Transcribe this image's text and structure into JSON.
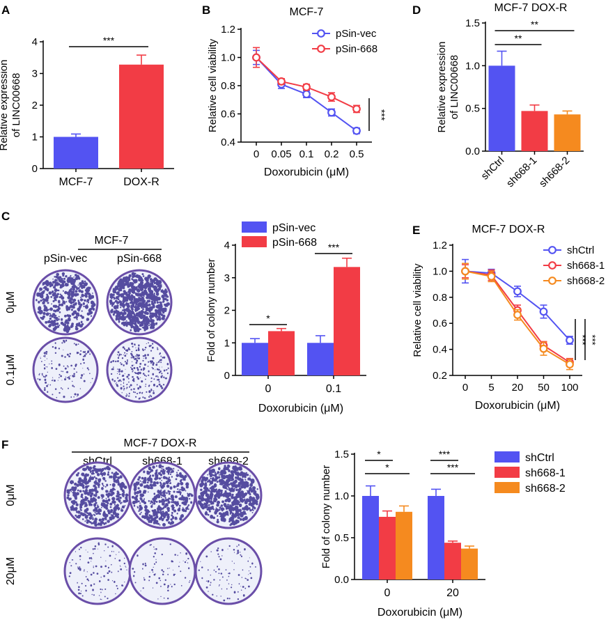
{
  "colors": {
    "blue": "#5353f2",
    "red": "#f23c45",
    "orange": "#f58a1f",
    "plate_edge": "#6a4ea8",
    "plate_bg": "#eef0fa",
    "plate_light": "#dfe4f2",
    "colony": "#3a2f8f"
  },
  "panels": {
    "A": {
      "letter": "A",
      "chart_data": {
        "type": "bar",
        "title": "",
        "categories": [
          "MCF-7",
          "DOX-R"
        ],
        "values": [
          1.0,
          3.28
        ],
        "errors": [
          0.09,
          0.3
        ],
        "bar_colors": [
          "#5353f2",
          "#f23c45"
        ],
        "ylabel_lines": [
          "Relative expression",
          "of LINC00668"
        ],
        "xlabel": "",
        "ylim": [
          0,
          4
        ],
        "yticks": [
          "0",
          "1",
          "2",
          "3",
          "4"
        ],
        "significance": [
          {
            "from": 0,
            "to": 1,
            "label": "***"
          }
        ]
      }
    },
    "B": {
      "letter": "B",
      "chart_data": {
        "type": "line",
        "title": "MCF-7",
        "categories": [
          "0",
          "0.05",
          "0.1",
          "0.2",
          "0.5"
        ],
        "series": [
          {
            "name": "pSin-vec",
            "color": "#5353f2",
            "values": [
              1.0,
              0.81,
              0.74,
              0.61,
              0.48
            ],
            "errors": [
              0.05,
              0.03,
              0.025,
              0.025,
              0.02
            ]
          },
          {
            "name": "pSin-668",
            "color": "#f23c45",
            "values": [
              1.0,
              0.83,
              0.79,
              0.72,
              0.635
            ],
            "errors": [
              0.07,
              0.02,
              0.02,
              0.03,
              0.025
            ]
          }
        ],
        "ylabel": "Relative cell viability",
        "xlabel": "Doxorubicin (μM)",
        "ylim": [
          0.4,
          1.2
        ],
        "yticks": [
          "0.4",
          "0.6",
          "0.8",
          "1.0",
          "1.2"
        ],
        "legend": "top-right",
        "significance_label": "***"
      }
    },
    "C": {
      "letter": "C",
      "plates_title": "MCF-7",
      "plate_columns": [
        "pSin-vec",
        "pSin-668"
      ],
      "plate_rows": [
        "0μM",
        "0.1μM"
      ],
      "chart_data": {
        "type": "bar",
        "title": "",
        "categories": [
          "0",
          "0.1"
        ],
        "series": [
          {
            "name": "pSin-vec",
            "color": "#5353f2",
            "values": [
              1.0,
              1.0
            ],
            "errors": [
              0.13,
              0.22
            ]
          },
          {
            "name": "pSin-668",
            "color": "#f23c45",
            "values": [
              1.36,
              3.33
            ],
            "errors": [
              0.08,
              0.27
            ]
          }
        ],
        "ylabel": "Fold of colony number",
        "xlabel": "Doxorubicin (μM)",
        "ylim": [
          0,
          4
        ],
        "yticks": [
          "0",
          "1",
          "2",
          "3",
          "4"
        ],
        "legend": "top-left",
        "significance": [
          {
            "group": 0,
            "label": "*"
          },
          {
            "group": 1,
            "label": "***"
          }
        ]
      }
    },
    "D": {
      "letter": "D",
      "chart_data": {
        "type": "bar",
        "title": "MCF-7 DOX-R",
        "categories": [
          "shCtrl",
          "sh668-1",
          "sh668-2"
        ],
        "values": [
          1.0,
          0.47,
          0.43
        ],
        "errors": [
          0.17,
          0.07,
          0.04
        ],
        "bar_colors": [
          "#5353f2",
          "#f23c45",
          "#f58a1f"
        ],
        "ylabel_lines": [
          "Relative expression",
          "of LINC00668"
        ],
        "xlabel": "",
        "ylim": [
          0,
          1.5
        ],
        "yticks": [
          "0.0",
          "0.5",
          "1.0",
          "1.5"
        ],
        "significance": [
          {
            "from": 0,
            "to": 1,
            "label": "**"
          },
          {
            "from": 0,
            "to": 2,
            "label": "**"
          }
        ]
      }
    },
    "E": {
      "letter": "E",
      "chart_data": {
        "type": "line",
        "title": "MCF-7 DOX-R",
        "categories": [
          "0",
          "5",
          "20",
          "50",
          "100"
        ],
        "series": [
          {
            "name": "shCtrl",
            "color": "#5353f2",
            "values": [
              1.0,
              0.985,
              0.845,
              0.69,
              0.47
            ],
            "errors": [
              0.09,
              0.03,
              0.04,
              0.05,
              0.03
            ]
          },
          {
            "name": "sh668-1",
            "color": "#f23c45",
            "values": [
              1.0,
              0.97,
              0.7,
              0.43,
              0.3
            ],
            "errors": [
              0.05,
              0.04,
              0.04,
              0.03,
              0.03
            ]
          },
          {
            "name": "sh668-2",
            "color": "#f58a1f",
            "values": [
              1.0,
              0.96,
              0.665,
              0.405,
              0.285
            ],
            "errors": [
              0.06,
              0.04,
              0.04,
              0.05,
              0.04
            ]
          }
        ],
        "ylabel": "Relative cell viability",
        "xlabel": "Doxorubicin (μM)",
        "ylim": [
          0.2,
          1.2
        ],
        "yticks": [
          "0.2",
          "0.4",
          "0.6",
          "0.8",
          "1.0",
          "1.2"
        ],
        "legend": "top-right",
        "significance_labels": [
          "***",
          "***"
        ]
      }
    },
    "F": {
      "letter": "F",
      "plates_title": "MCF-7 DOX-R",
      "plate_columns": [
        "shCtrl",
        "sh668-1",
        "sh668-2"
      ],
      "plate_rows": [
        "0μM",
        "20μM"
      ],
      "chart_data": {
        "type": "bar",
        "title": "",
        "categories": [
          "0",
          "20"
        ],
        "series": [
          {
            "name": "shCtrl",
            "color": "#5353f2",
            "values": [
              1.0,
              1.0
            ],
            "errors": [
              0.12,
              0.08
            ]
          },
          {
            "name": "sh668-1",
            "color": "#f23c45",
            "values": [
              0.75,
              0.44
            ],
            "errors": [
              0.07,
              0.02
            ]
          },
          {
            "name": "sh668-2",
            "color": "#f58a1f",
            "values": [
              0.81,
              0.37
            ],
            "errors": [
              0.07,
              0.03
            ]
          }
        ],
        "ylabel": "Fold of colony number",
        "xlabel": "Doxorubicin (μM)",
        "ylim": [
          0,
          1.5
        ],
        "yticks": [
          "0.0",
          "0.5",
          "1.0",
          "1.5"
        ],
        "legend": "right",
        "significance": [
          {
            "group": 0,
            "from": 0,
            "to": 1,
            "label": "*"
          },
          {
            "group": 0,
            "from": 0,
            "to": 2,
            "label": "*"
          },
          {
            "group": 1,
            "from": 0,
            "to": 1,
            "label": "***"
          },
          {
            "group": 1,
            "from": 0,
            "to": 2,
            "label": "***"
          }
        ]
      }
    }
  }
}
